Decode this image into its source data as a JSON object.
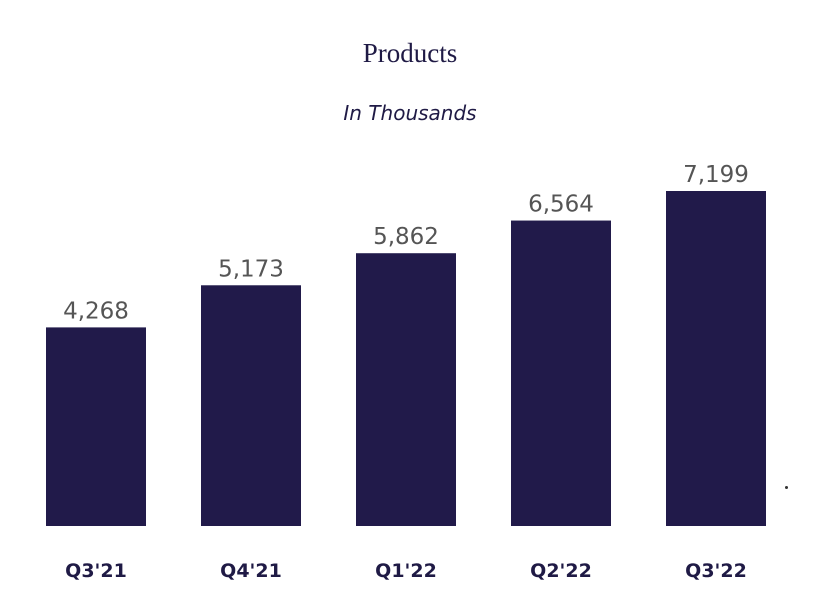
{
  "chart_data": {
    "type": "bar",
    "title": "Products",
    "subtitle": "In Thousands",
    "categories": [
      "Q3'21",
      "Q4'21",
      "Q1'22",
      "Q2'22",
      "Q3'22"
    ],
    "values": [
      4268,
      5173,
      5862,
      6564,
      7199
    ],
    "value_labels": [
      "4,268",
      "5,173",
      "5,862",
      "6,564",
      "7,199"
    ],
    "xlabel": "",
    "ylabel": "",
    "ylim": [
      0,
      7199
    ],
    "grid": false,
    "legend": "none",
    "bar_color": "#211a4a"
  }
}
